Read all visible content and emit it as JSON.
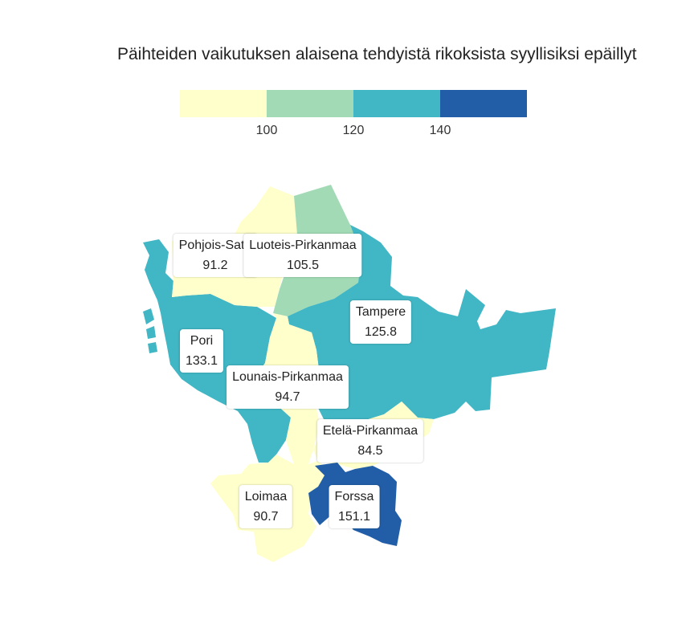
{
  "title": "Päihteiden vaikutuksen alaisena tehdyistä rikoksista syyllisiksi epäillyt",
  "legend": {
    "colors": [
      "#ffffcc",
      "#a1dab4",
      "#41b6c4",
      "#225ea8"
    ],
    "ticks": [
      "100",
      "120",
      "140"
    ]
  },
  "regions": [
    {
      "id": "pohjois-satakunta",
      "name": "Pohjois-Sata",
      "value": "91.2",
      "color": "#ffffcc"
    },
    {
      "id": "luoteis-pirkanmaa",
      "name": "Luoteis-Pirkanmaa",
      "value": "105.5",
      "color": "#a1dab4"
    },
    {
      "id": "tampere",
      "name": "Tampere",
      "value": "125.8",
      "color": "#41b6c4"
    },
    {
      "id": "pori",
      "name": "Pori",
      "value": "133.1",
      "color": "#41b6c4"
    },
    {
      "id": "lounais-pirkanmaa",
      "name": "Lounais-Pirkanmaa",
      "value": "94.7",
      "color": "#ffffcc"
    },
    {
      "id": "etela-pirkanmaa",
      "name": "Etelä-Pirkanmaa",
      "value": "84.5",
      "color": "#ffffcc"
    },
    {
      "id": "loimaa",
      "name": "Loimaa",
      "value": "90.7",
      "color": "#ffffcc"
    },
    {
      "id": "forssa",
      "name": "Forssa",
      "value": "151.1",
      "color": "#225ea8"
    }
  ]
}
